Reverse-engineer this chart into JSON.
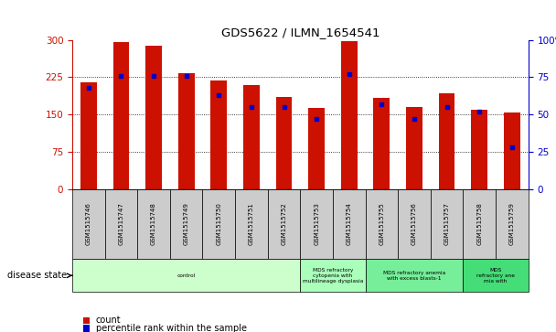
{
  "title": "GDS5622 / ILMN_1654541",
  "samples": [
    "GSM1515746",
    "GSM1515747",
    "GSM1515748",
    "GSM1515749",
    "GSM1515750",
    "GSM1515751",
    "GSM1515752",
    "GSM1515753",
    "GSM1515754",
    "GSM1515755",
    "GSM1515756",
    "GSM1515757",
    "GSM1515758",
    "GSM1515759"
  ],
  "counts": [
    215,
    295,
    288,
    233,
    218,
    210,
    185,
    163,
    297,
    183,
    165,
    193,
    160,
    155
  ],
  "percentiles": [
    68,
    76,
    76,
    76,
    63,
    55,
    55,
    47,
    77,
    57,
    47,
    55,
    52,
    28
  ],
  "ylim_left": [
    0,
    300
  ],
  "ylim_right": [
    0,
    100
  ],
  "yticks_left": [
    0,
    75,
    150,
    225,
    300
  ],
  "yticks_right": [
    0,
    25,
    50,
    75,
    100
  ],
  "bar_color": "#CC1100",
  "dot_color": "#0000CC",
  "bg_color": "#FFFFFF",
  "disease_groups": [
    {
      "label": "control",
      "start": 0,
      "end": 7,
      "color": "#CCFFCC"
    },
    {
      "label": "MDS refractory\ncytopenia with\nmultilineage dysplasia",
      "start": 7,
      "end": 9,
      "color": "#AAFFBB"
    },
    {
      "label": "MDS refractory anemia\nwith excess blasts-1",
      "start": 9,
      "end": 12,
      "color": "#77EE99"
    },
    {
      "label": "MDS\nrefractory ane\nmia with",
      "start": 12,
      "end": 14,
      "color": "#44DD77"
    }
  ],
  "xlabel_disease": "disease state",
  "legend_count": "count",
  "legend_percentile": "percentile rank within the sample"
}
